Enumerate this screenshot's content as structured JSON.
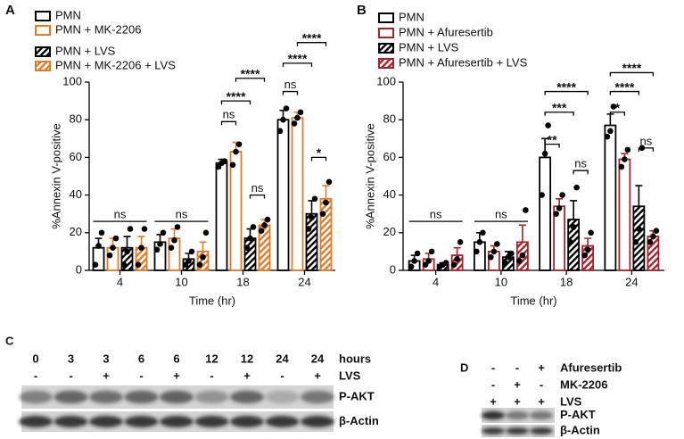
{
  "chart_data": [
    {
      "type": "bar",
      "panel": "A",
      "ylabel": "%Annexin V-positive",
      "xlabel": "Time (hr)",
      "categories": [
        "4",
        "10",
        "18",
        "24"
      ],
      "ylim": [
        0,
        100
      ],
      "yticks": [
        0,
        20,
        40,
        60,
        80,
        100
      ],
      "series": [
        {
          "name": "PMN",
          "color": "#000000",
          "pattern": "open",
          "values": [
            12,
            15,
            57,
            80
          ],
          "errors": [
            5,
            4,
            2,
            5
          ],
          "points": [
            [
              3,
              13,
              20
            ],
            [
              11,
              14,
              20
            ],
            [
              55,
              57,
              58
            ],
            [
              74,
              80,
              86
            ]
          ]
        },
        {
          "name": "PMN + MK-2206",
          "color": "#e07b2a",
          "pattern": "open",
          "values": [
            12,
            17,
            63,
            81
          ],
          "errors": [
            5,
            5,
            5,
            3
          ],
          "points": [
            [
              8,
              12,
              17
            ],
            [
              12,
              16,
              23
            ],
            [
              56,
              63,
              67
            ],
            [
              78,
              81,
              84
            ]
          ]
        },
        {
          "name": "PMN + LVS",
          "color": "#000000",
          "pattern": "hatched",
          "values": [
            12,
            6,
            17,
            30
          ],
          "errors": [
            6,
            3,
            5,
            7
          ],
          "points": [
            [
              3,
              10,
              22
            ],
            [
              3,
              5,
              10
            ],
            [
              12,
              17,
              23
            ],
            [
              22,
              28,
              38
            ]
          ]
        },
        {
          "name": "PMN + MK-2206 + LVS",
          "color": "#e07b2a",
          "pattern": "hatched",
          "values": [
            12,
            10,
            24,
            38
          ],
          "errors": [
            6,
            5,
            3,
            7
          ],
          "points": [
            [
              3,
              12,
              22
            ],
            [
              3,
              7,
              20
            ],
            [
              21,
              24,
              27
            ],
            [
              30,
              36,
              47
            ]
          ]
        }
      ],
      "significance": [
        "ns",
        "ns",
        "ns",
        "****",
        "****",
        "ns",
        "ns",
        "****",
        "****",
        "*"
      ]
    },
    {
      "type": "bar",
      "panel": "B",
      "ylabel": "%Annexin V-positive",
      "xlabel": "Time (hr)",
      "categories": [
        "4",
        "10",
        "18",
        "24"
      ],
      "ylim": [
        0,
        100
      ],
      "yticks": [
        0,
        20,
        40,
        60,
        80,
        100
      ],
      "series": [
        {
          "name": "PMN",
          "color": "#000000",
          "pattern": "open",
          "values": [
            5,
            15,
            60,
            77
          ],
          "errors": [
            3,
            5,
            10,
            6
          ],
          "points": [
            [
              2,
              5,
              9
            ],
            [
              10,
              15,
              20
            ],
            [
              40,
              62,
              77
            ],
            [
              71,
              74,
              87
            ]
          ]
        },
        {
          "name": "PMN + Afuresertib",
          "color": "#a3242b",
          "pattern": "open",
          "values": [
            6,
            10,
            34,
            59
          ],
          "errors": [
            3,
            3,
            4,
            3
          ],
          "points": [
            [
              3,
              5,
              10
            ],
            [
              7,
              10,
              14
            ],
            [
              30,
              33,
              40
            ],
            [
              55,
              59,
              64
            ]
          ]
        },
        {
          "name": "PMN + LVS",
          "color": "#000000",
          "pattern": "hatched",
          "values": [
            3,
            7,
            27,
            34
          ],
          "errors": [
            1,
            3,
            10,
            11
          ],
          "points": [
            [
              2,
              3,
              4
            ],
            [
              4,
              7,
              9
            ],
            [
              15,
              23,
              44
            ],
            [
              15,
              22,
              65
            ]
          ]
        },
        {
          "name": "PMN + Afuresertib + LVS",
          "color": "#a3242b",
          "pattern": "hatched",
          "values": [
            8,
            15,
            13,
            18
          ],
          "errors": [
            4,
            9,
            4,
            3
          ],
          "points": [
            [
              3,
              6,
              15
            ],
            [
              5,
              8,
              32
            ],
            [
              8,
              11,
              20
            ],
            [
              15,
              18,
              21
            ]
          ]
        }
      ],
      "significance": [
        "ns",
        "ns",
        "**",
        "***",
        "****",
        "ns",
        "*",
        "****",
        "****",
        "ns"
      ]
    }
  ],
  "blots": [
    {
      "panel": "C",
      "rows": [
        {
          "name": "hours",
          "values": [
            "0",
            "3",
            "3",
            "6",
            "6",
            "12",
            "12",
            "24",
            "24"
          ]
        },
        {
          "name": "LVS",
          "values": [
            "-",
            "-",
            "+",
            "-",
            "+",
            "-",
            "+",
            "-",
            "+"
          ]
        }
      ],
      "bands": [
        "P-AKT",
        "β-Actin"
      ]
    },
    {
      "panel": "D",
      "rows": [
        {
          "name": "Afuresertib",
          "values": [
            "-",
            "-",
            "+"
          ]
        },
        {
          "name": "MK-2206",
          "values": [
            "-",
            "+",
            "-"
          ]
        },
        {
          "name": "LVS",
          "values": [
            "+",
            "+",
            "+"
          ]
        }
      ],
      "bands": [
        "P-AKT",
        "β-Actin"
      ]
    }
  ]
}
